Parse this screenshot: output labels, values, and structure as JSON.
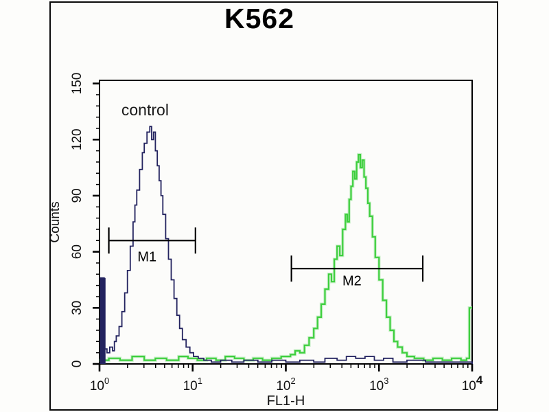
{
  "chart_data": {
    "type": "line",
    "subtype": "flow-cytometry-step-histogram",
    "title": "K562",
    "xlabel": "FL1-H",
    "ylabel": "Counts",
    "x_scale": "log",
    "x_range": [
      1,
      10000
    ],
    "y_range": [
      0,
      150
    ],
    "y_ticks": [
      0,
      30,
      60,
      90,
      120,
      150
    ],
    "y_minor_step": 6,
    "x_ticks": [
      {
        "base": "10",
        "exp": "0",
        "bold": false
      },
      {
        "base": "10",
        "exp": "1",
        "bold": false
      },
      {
        "base": "10",
        "exp": "2",
        "bold": false
      },
      {
        "base": "10",
        "exp": "3",
        "bold": false
      },
      {
        "base": "10",
        "exp": "4",
        "bold": true
      }
    ],
    "grid": false,
    "axis_color": "#000000",
    "series": [
      {
        "name": "control",
        "color": "#23235f",
        "edge_bar": {
          "log_x": 0.0,
          "log_width": 0.05,
          "counts": 46
        },
        "points": [
          [
            0.0,
            46
          ],
          [
            0.05,
            8
          ],
          [
            0.08,
            6
          ],
          [
            0.11,
            9
          ],
          [
            0.14,
            7
          ],
          [
            0.16,
            12
          ],
          [
            0.18,
            15
          ],
          [
            0.21,
            20
          ],
          [
            0.24,
            28
          ],
          [
            0.27,
            38
          ],
          [
            0.3,
            50
          ],
          [
            0.33,
            63
          ],
          [
            0.36,
            76
          ],
          [
            0.38,
            85
          ],
          [
            0.4,
            93
          ],
          [
            0.43,
            104
          ],
          [
            0.46,
            113
          ],
          [
            0.48,
            118
          ],
          [
            0.51,
            124
          ],
          [
            0.54,
            127
          ],
          [
            0.56,
            120
          ],
          [
            0.58,
            124
          ],
          [
            0.6,
            114
          ],
          [
            0.62,
            106
          ],
          [
            0.64,
            98
          ],
          [
            0.66,
            90
          ],
          [
            0.68,
            80
          ],
          [
            0.71,
            67
          ],
          [
            0.74,
            56
          ],
          [
            0.77,
            45
          ],
          [
            0.8,
            35
          ],
          [
            0.83,
            26
          ],
          [
            0.86,
            19
          ],
          [
            0.89,
            13
          ],
          [
            0.93,
            9
          ],
          [
            0.97,
            6
          ],
          [
            1.01,
            4
          ],
          [
            1.06,
            3
          ],
          [
            1.12,
            2
          ],
          [
            1.2,
            1
          ],
          [
            1.3,
            2
          ],
          [
            1.42,
            1
          ],
          [
            1.55,
            2
          ],
          [
            1.7,
            1
          ],
          [
            1.85,
            2
          ],
          [
            2.0,
            1
          ],
          [
            2.15,
            2
          ],
          [
            2.3,
            1
          ],
          [
            2.42,
            3
          ],
          [
            2.55,
            2
          ],
          [
            2.65,
            4
          ],
          [
            2.75,
            3
          ],
          [
            2.85,
            4
          ],
          [
            2.95,
            2
          ],
          [
            3.05,
            3
          ],
          [
            3.15,
            1
          ],
          [
            3.3,
            2
          ],
          [
            3.5,
            1
          ],
          [
            3.7,
            1
          ],
          [
            3.85,
            1
          ],
          [
            4.0,
            0
          ]
        ]
      },
      {
        "name": "",
        "color": "#3ecf3e",
        "glow_color": "#aee8ae",
        "points": [
          [
            0.0,
            2
          ],
          [
            0.1,
            3
          ],
          [
            0.22,
            2
          ],
          [
            0.35,
            4
          ],
          [
            0.48,
            2
          ],
          [
            0.6,
            3
          ],
          [
            0.72,
            2
          ],
          [
            0.85,
            4
          ],
          [
            0.95,
            3
          ],
          [
            1.05,
            2
          ],
          [
            1.15,
            3
          ],
          [
            1.25,
            2
          ],
          [
            1.35,
            4
          ],
          [
            1.45,
            3
          ],
          [
            1.55,
            2
          ],
          [
            1.65,
            3
          ],
          [
            1.75,
            2
          ],
          [
            1.85,
            3
          ],
          [
            1.95,
            4
          ],
          [
            2.05,
            5
          ],
          [
            2.1,
            7
          ],
          [
            2.15,
            6
          ],
          [
            2.2,
            10
          ],
          [
            2.25,
            14
          ],
          [
            2.3,
            19
          ],
          [
            2.34,
            25
          ],
          [
            2.38,
            32
          ],
          [
            2.42,
            40
          ],
          [
            2.46,
            48
          ],
          [
            2.49,
            44
          ],
          [
            2.52,
            56
          ],
          [
            2.55,
            63
          ],
          [
            2.58,
            58
          ],
          [
            2.61,
            72
          ],
          [
            2.64,
            80
          ],
          [
            2.66,
            76
          ],
          [
            2.68,
            88
          ],
          [
            2.7,
            95
          ],
          [
            2.72,
            103
          ],
          [
            2.74,
            99
          ],
          [
            2.76,
            108
          ],
          [
            2.78,
            112
          ],
          [
            2.8,
            105
          ],
          [
            2.82,
            109
          ],
          [
            2.84,
            100
          ],
          [
            2.86,
            94
          ],
          [
            2.88,
            86
          ],
          [
            2.9,
            79
          ],
          [
            2.93,
            68
          ],
          [
            2.96,
            57
          ],
          [
            3.0,
            45
          ],
          [
            3.04,
            34
          ],
          [
            3.08,
            25
          ],
          [
            3.12,
            18
          ],
          [
            3.16,
            12
          ],
          [
            3.2,
            9
          ],
          [
            3.25,
            6
          ],
          [
            3.3,
            4
          ],
          [
            3.38,
            3
          ],
          [
            3.48,
            2
          ],
          [
            3.58,
            3
          ],
          [
            3.68,
            2
          ],
          [
            3.78,
            3
          ],
          [
            3.88,
            2
          ],
          [
            3.94,
            3
          ],
          [
            3.97,
            30
          ],
          [
            4.0,
            30
          ]
        ]
      }
    ],
    "markers": [
      {
        "label": "M1",
        "log_x_start": 0.1,
        "log_x_end": 1.03,
        "counts": 66,
        "label_log_x": 0.51,
        "label_counts": 55
      },
      {
        "label": "M2",
        "log_x_start": 2.06,
        "log_x_end": 3.47,
        "counts": 51,
        "label_log_x": 2.71,
        "label_counts": 42
      }
    ],
    "annotations": [
      {
        "text": "control",
        "log_x": 0.235,
        "counts": 133,
        "color": "#1b1b1b"
      }
    ]
  }
}
